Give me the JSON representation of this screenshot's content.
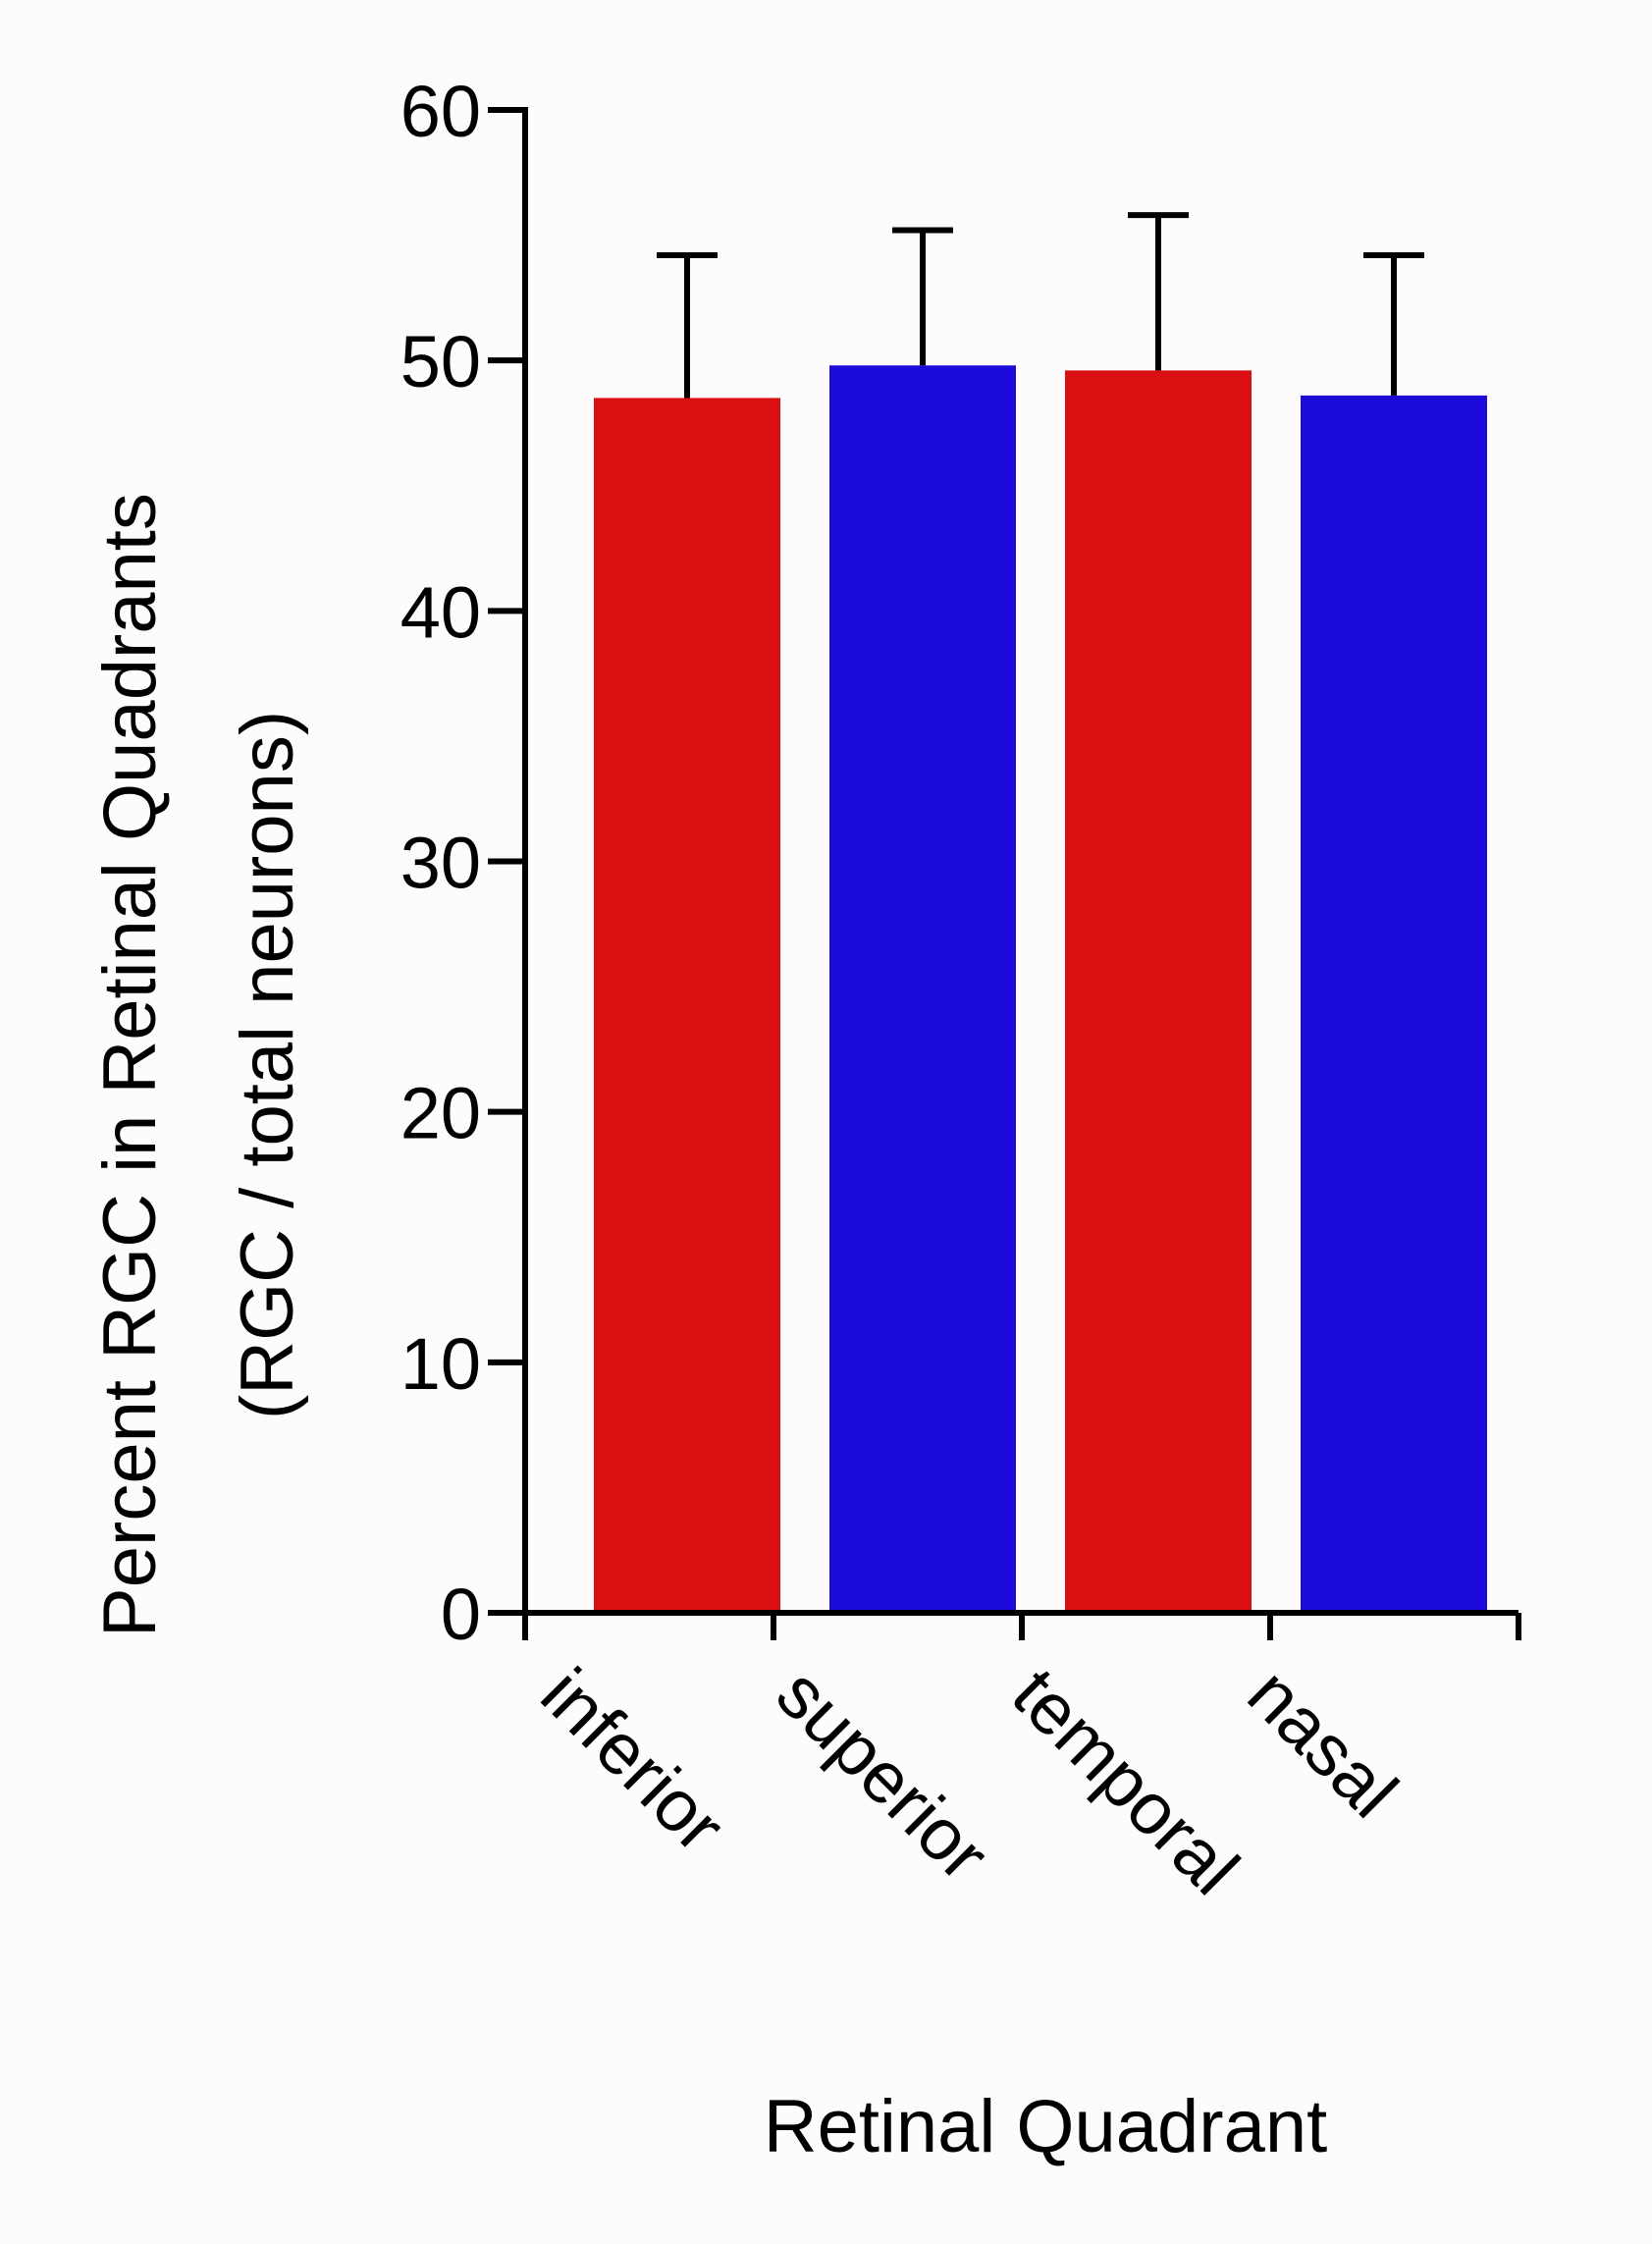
{
  "chart_data": {
    "type": "bar",
    "categories": [
      "inferior",
      "superior",
      "temporal",
      "nasal"
    ],
    "values": [
      48.5,
      49.8,
      49.6,
      48.6
    ],
    "error_upper": [
      54.2,
      55.2,
      55.8,
      54.2
    ],
    "colors": [
      "#d90f12",
      "#1c0ad9",
      "#d90f12",
      "#1c0ad9"
    ],
    "ylabel_line1": "Percent RGC in Retinal Quadrants",
    "ylabel_line2": "(RGC / total neurons)",
    "xlabel": "Retinal Quadrant",
    "ylim": [
      0,
      60
    ],
    "yticks": [
      0,
      10,
      20,
      30,
      40,
      50,
      60
    ],
    "grid": false,
    "legend": "none"
  }
}
